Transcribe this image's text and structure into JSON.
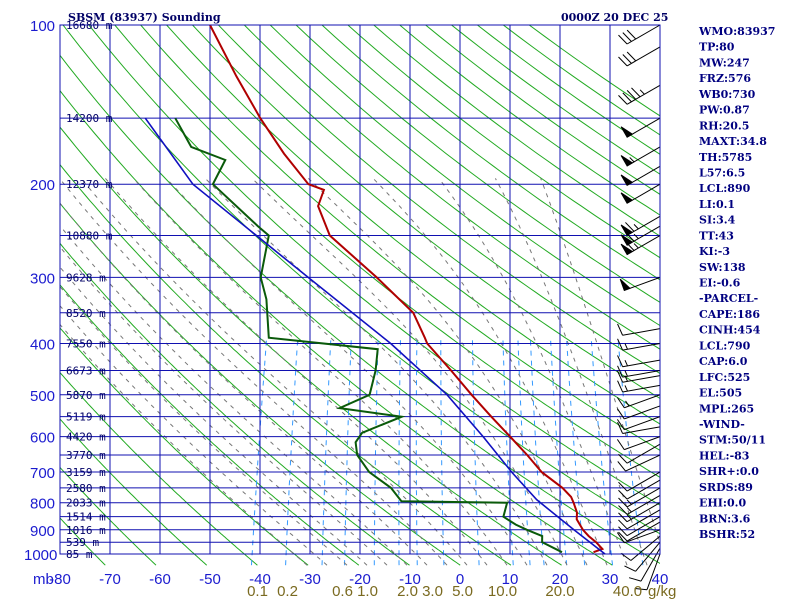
{
  "header": {
    "station_title": "SBSM (83937) Sounding",
    "time_title": "0000Z 20 DEC 25"
  },
  "colors": {
    "isobar": "#1010b0",
    "isotherm": "#1010b0",
    "dry_adiabat": "#22aa22",
    "moist_adiabat": "#777777",
    "mixing_ratio": "#3399ff",
    "temperature": "#b00000",
    "dewpoint": "#0a5a0a",
    "parcel": "#1010c0",
    "wind": "#000000"
  },
  "chart_data": {
    "type": "skew-t",
    "title": "SBSM (83937) Sounding",
    "pressure_range_mb": [
      100,
      1000
    ],
    "temperature_range_c": [
      -80,
      40
    ],
    "pressure_unit": "mb",
    "mixing_ratio_unit": "g/kg",
    "isobars": [
      100,
      200,
      300,
      400,
      500,
      600,
      700,
      800,
      900,
      1000
    ],
    "temperature_ticks": [
      -80,
      -70,
      -60,
      -50,
      -40,
      -30,
      -20,
      -10,
      0,
      10,
      20,
      30,
      40
    ],
    "mixing_ratio_labels": [
      {
        "label": "0.1",
        "temp": -40.5
      },
      {
        "label": "0.2",
        "temp": -34.5
      },
      {
        "label": "0.6",
        "temp": -23.5
      },
      {
        "label": "1.0",
        "temp": -18.5
      },
      {
        "label": "2.0",
        "temp": -10.5
      },
      {
        "label": "3.0",
        "temp": -5.5
      },
      {
        "label": "5.0",
        "temp": 0.5
      },
      {
        "label": "10.0",
        "temp": 8.5
      },
      {
        "label": "20.0",
        "temp": 20.0
      },
      {
        "label": "40.0",
        "temp": 33.5
      }
    ],
    "height_labels": [
      {
        "p": 100,
        "label": "16680 m"
      },
      {
        "p": 150,
        "label": "14200 m"
      },
      {
        "p": 200,
        "label": "12370 m"
      },
      {
        "p": 250,
        "label": "10880 m"
      },
      {
        "p": 300,
        "label": "9628 m"
      },
      {
        "p": 350,
        "label": "8520 m"
      },
      {
        "p": 400,
        "label": "7550 m"
      },
      {
        "p": 450,
        "label": "6673 m"
      },
      {
        "p": 500,
        "label": "5870 m"
      },
      {
        "p": 550,
        "label": "5119 m"
      },
      {
        "p": 600,
        "label": "4420 m"
      },
      {
        "p": 650,
        "label": "3770 m"
      },
      {
        "p": 700,
        "label": "3159 m"
      },
      {
        "p": 750,
        "label": "2580 m"
      },
      {
        "p": 800,
        "label": "2033 m"
      },
      {
        "p": 850,
        "label": "1514 m"
      },
      {
        "p": 900,
        "label": "1016 m"
      },
      {
        "p": 950,
        "label": "539 m"
      },
      {
        "p": 1000,
        "label": "85 m"
      }
    ],
    "temperature_profile": [
      [
        992,
        26.6
      ],
      [
        978,
        28.2
      ],
      [
        950,
        26.6
      ],
      [
        925,
        24.8
      ],
      [
        900,
        23.3
      ],
      [
        860,
        21.5
      ],
      [
        835,
        21.2
      ],
      [
        800,
        20.0
      ],
      [
        780,
        19.2
      ],
      [
        750,
        17.0
      ],
      [
        700,
        12.0
      ],
      [
        650,
        8.2
      ],
      [
        620,
        5.6
      ],
      [
        600,
        3.8
      ],
      [
        550,
        -1.0
      ],
      [
        500,
        -6.1
      ],
      [
        450,
        -11.5
      ],
      [
        400,
        -17.7
      ],
      [
        390,
        -18.5
      ],
      [
        350,
        -22.1
      ],
      [
        300,
        -31.3
      ],
      [
        250,
        -42.9
      ],
      [
        220,
        -46.8
      ],
      [
        205,
        -46.5
      ],
      [
        200,
        -49.9
      ],
      [
        175,
        -56.4
      ],
      [
        150,
        -63.0
      ],
      [
        125,
        -70.0
      ],
      [
        100,
        -78.0
      ]
    ],
    "dewpoint_profile": [
      [
        992,
        20.3
      ],
      [
        950,
        15.8
      ],
      [
        925,
        15.5
      ],
      [
        900,
        12.1
      ],
      [
        880,
        9.6
      ],
      [
        850,
        6.7
      ],
      [
        800,
        6.7
      ],
      [
        795,
        -14.5
      ],
      [
        750,
        -17.3
      ],
      [
        700,
        -22.5
      ],
      [
        650,
        -25.8
      ],
      [
        615,
        -26.8
      ],
      [
        590,
        -26.0
      ],
      [
        550,
        -18.9
      ],
      [
        530,
        -31.8
      ],
      [
        500,
        -26.5
      ],
      [
        450,
        -26.6
      ],
      [
        410,
        -27.3
      ],
      [
        390,
        -49.7
      ],
      [
        330,
        -52.2
      ],
      [
        300,
        -54.5
      ],
      [
        250,
        -55.1
      ],
      [
        240,
        -57.8
      ],
      [
        200,
        -69.0
      ],
      [
        180,
        -67.8
      ],
      [
        170,
        -75.3
      ],
      [
        150,
        -80.0
      ]
    ],
    "parcel_profile": [
      [
        1000,
        29.0
      ],
      [
        900,
        21.5
      ],
      [
        790,
        12.5
      ],
      [
        700,
        6.0
      ],
      [
        600,
        -1.6
      ],
      [
        500,
        -11.0
      ],
      [
        400,
        -25.0
      ],
      [
        300,
        -45.0
      ],
      [
        200,
        -73.0
      ],
      [
        150,
        -86.0
      ]
    ],
    "wind_barbs": [
      {
        "p": 1000,
        "dir": 200,
        "spd": 10
      },
      {
        "p": 975,
        "dir": 210,
        "spd": 10
      },
      {
        "p": 950,
        "dir": 220,
        "spd": 10
      },
      {
        "p": 925,
        "dir": 230,
        "spd": 10
      },
      {
        "p": 900,
        "dir": 250,
        "spd": 10
      },
      {
        "p": 870,
        "dir": 240,
        "spd": 10
      },
      {
        "p": 850,
        "dir": 240,
        "spd": 10
      },
      {
        "p": 825,
        "dir": 240,
        "spd": 10
      },
      {
        "p": 800,
        "dir": 240,
        "spd": 15
      },
      {
        "p": 775,
        "dir": 240,
        "spd": 15
      },
      {
        "p": 750,
        "dir": 240,
        "spd": 15
      },
      {
        "p": 725,
        "dir": 240,
        "spd": 10
      },
      {
        "p": 700,
        "dir": 240,
        "spd": 10
      },
      {
        "p": 650,
        "dir": 245,
        "spd": 10
      },
      {
        "p": 620,
        "dir": 240,
        "spd": 10
      },
      {
        "p": 600,
        "dir": 250,
        "spd": 10
      },
      {
        "p": 575,
        "dir": 260,
        "spd": 10
      },
      {
        "p": 550,
        "dir": 250,
        "spd": 10
      },
      {
        "p": 525,
        "dir": 250,
        "spd": 10
      },
      {
        "p": 500,
        "dir": 250,
        "spd": 15
      },
      {
        "p": 480,
        "dir": 260,
        "spd": 15
      },
      {
        "p": 460,
        "dir": 260,
        "spd": 15
      },
      {
        "p": 450,
        "dir": 260,
        "spd": 15
      },
      {
        "p": 430,
        "dir": 260,
        "spd": 15
      },
      {
        "p": 400,
        "dir": 260,
        "spd": 15
      },
      {
        "p": 375,
        "dir": 260,
        "spd": 10
      },
      {
        "p": 300,
        "dir": 250,
        "spd": 50
      },
      {
        "p": 250,
        "dir": 240,
        "spd": 65
      },
      {
        "p": 240,
        "dir": 240,
        "spd": 65
      },
      {
        "p": 230,
        "dir": 240,
        "spd": 65
      },
      {
        "p": 200,
        "dir": 240,
        "spd": 50
      },
      {
        "p": 185,
        "dir": 240,
        "spd": 50
      },
      {
        "p": 170,
        "dir": 240,
        "spd": 55
      },
      {
        "p": 150,
        "dir": 240,
        "spd": 50
      },
      {
        "p": 130,
        "dir": 240,
        "spd": 45
      },
      {
        "p": 110,
        "dir": 240,
        "spd": 30
      },
      {
        "p": 100,
        "dir": 240,
        "spd": 30
      }
    ]
  },
  "indices": [
    "WMO:83937",
    "TP:80",
    "MW:247",
    "FRZ:576",
    "WB0:730",
    "PW:0.87",
    "RH:20.5",
    "MAXT:34.8",
    "TH:5785",
    "L57:6.5",
    "LCL:890",
    "LI:0.1",
    "SI:3.4",
    "TT:43",
    "KI:-3",
    "SW:138",
    "EI:-0.6",
    "-PARCEL-",
    "CAPE:186",
    "CINH:454",
    "LCL:790",
    "CAP:6.0",
    "LFC:525",
    "EL:505",
    "MPL:265",
    "-WIND-",
    "STM:50/11",
    "HEL:-83",
    "SHR+:0.0",
    "SRDS:89",
    "EHI:0.0",
    "BRN:3.6",
    "BSHR:52"
  ]
}
